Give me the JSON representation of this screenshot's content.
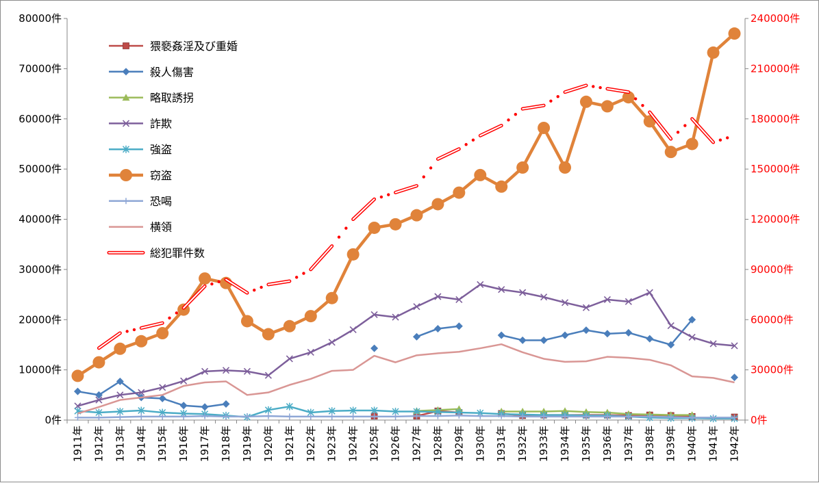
{
  "chart_data": {
    "type": "line",
    "categories": [
      "1911年",
      "1912年",
      "1913年",
      "1914年",
      "1915年",
      "1916年",
      "1917年",
      "1918年",
      "1919年",
      "1920年",
      "1921年",
      "1922年",
      "1923年",
      "1924年",
      "1925年",
      "1926年",
      "1927年",
      "1928年",
      "1929年",
      "1930年",
      "1931年",
      "1932年",
      "1933年",
      "1934年",
      "1935年",
      "1936年",
      "1937年",
      "1938年",
      "1939年",
      "1940年",
      "1941年",
      "1942年"
    ],
    "y_left": {
      "min": 0,
      "max": 80000,
      "step": 10000,
      "tick_labels": [
        "0件",
        "10000件",
        "20000件",
        "30000件",
        "40000件",
        "50000件",
        "60000件",
        "70000件",
        "80000件"
      ]
    },
    "y_right": {
      "min": 0,
      "max": 240000,
      "step": 30000,
      "tick_labels": [
        "0件",
        "30000件",
        "60000件",
        "90000件",
        "120000件",
        "150000件",
        "180000件",
        "210000件",
        "240000件"
      ]
    },
    "grid": false,
    "legend_position": "top-left",
    "series": [
      {
        "name": "猥褻姦淫及び重婚",
        "axis": "left",
        "color": "#be4b48",
        "marker": "square",
        "values": [
          null,
          null,
          null,
          null,
          null,
          null,
          null,
          null,
          null,
          null,
          null,
          null,
          null,
          null,
          800,
          null,
          800,
          1800,
          1500,
          null,
          1300,
          900,
          1000,
          1000,
          1000,
          1000,
          900,
          1000,
          900,
          700,
          null,
          600
        ]
      },
      {
        "name": "殺人傷害",
        "axis": "left",
        "color": "#4a7ebb",
        "marker": "diamond",
        "values": [
          5700,
          5000,
          7700,
          4500,
          4300,
          2900,
          2600,
          3200,
          null,
          null,
          null,
          null,
          null,
          null,
          14300,
          null,
          16600,
          18200,
          18700,
          null,
          16900,
          15900,
          15900,
          16900,
          17900,
          17200,
          17400,
          16200,
          15000,
          20000,
          null,
          8500
        ]
      },
      {
        "name": "略取誘拐",
        "axis": "left",
        "color": "#9bbb59",
        "marker": "triangle",
        "values": [
          null,
          null,
          null,
          null,
          null,
          null,
          null,
          null,
          null,
          null,
          null,
          null,
          null,
          null,
          null,
          null,
          1800,
          2000,
          2200,
          null,
          1700,
          1700,
          1700,
          1800,
          1600,
          1500,
          1200,
          1100,
          1000,
          1000,
          null,
          null
        ]
      },
      {
        "name": "詐欺",
        "axis": "left",
        "color": "#7d5f9b",
        "marker": "x",
        "values": [
          2800,
          4000,
          5000,
          5500,
          6500,
          7800,
          9700,
          9900,
          9700,
          8900,
          12200,
          13500,
          15500,
          18000,
          21000,
          20500,
          22600,
          24600,
          24000,
          27000,
          26000,
          25400,
          24500,
          23400,
          22400,
          24000,
          23600,
          25400,
          18800,
          16500,
          15200,
          14800
        ]
      },
      {
        "name": "強盗",
        "axis": "left",
        "color": "#4bacc6",
        "marker": "asterisk",
        "values": [
          1800,
          1500,
          1700,
          1900,
          1500,
          1300,
          1200,
          900,
          600,
          2000,
          2700,
          1500,
          1800,
          1900,
          1900,
          1700,
          1700,
          1600,
          1500,
          1400,
          1200,
          1100,
          1000,
          1000,
          900,
          900,
          700,
          500,
          400,
          400,
          300,
          300
        ]
      },
      {
        "name": "窃盗",
        "axis": "left",
        "color": "#e0833a",
        "marker": "circle",
        "values": [
          8800,
          11500,
          14200,
          15700,
          17300,
          22000,
          28200,
          27300,
          19700,
          17100,
          18700,
          20700,
          24300,
          33000,
          38300,
          39000,
          40800,
          43000,
          45300,
          48800,
          46500,
          50300,
          58200,
          50300,
          63400,
          62500,
          64300,
          59500,
          53400,
          55000,
          73200,
          77000
        ]
      },
      {
        "name": "恐喝",
        "axis": "left",
        "color": "#8fa7d6",
        "marker": "plus",
        "values": [
          500,
          500,
          600,
          700,
          700,
          700,
          800,
          700,
          700,
          800,
          700,
          700,
          700,
          700,
          700,
          700,
          800,
          800,
          900,
          800,
          800,
          700,
          700,
          700,
          700,
          700,
          700,
          700,
          600,
          500,
          500,
          500
        ]
      },
      {
        "name": "横領",
        "axis": "left",
        "color": "#d99694",
        "marker": "none",
        "values": [
          1300,
          2600,
          4000,
          4500,
          5000,
          6800,
          7500,
          7700,
          5000,
          5500,
          7000,
          8200,
          9800,
          10000,
          12800,
          11500,
          12900,
          13300,
          13600,
          14300,
          15100,
          13500,
          12200,
          11600,
          11700,
          12600,
          12400,
          12000,
          10900,
          8700,
          8400,
          7500
        ]
      },
      {
        "name": "総犯罪件数",
        "axis": "right",
        "color": "#ff0000",
        "marker": "none",
        "values": [
          null,
          43000,
          52000,
          55000,
          58000,
          67000,
          80000,
          84000,
          76000,
          81000,
          83000,
          90000,
          104000,
          120000,
          132000,
          136000,
          140000,
          156000,
          162000,
          170000,
          176000,
          186000,
          188000,
          196000,
          200000,
          198000,
          196000,
          184000,
          168000,
          180000,
          166000,
          170000
        ]
      }
    ]
  }
}
